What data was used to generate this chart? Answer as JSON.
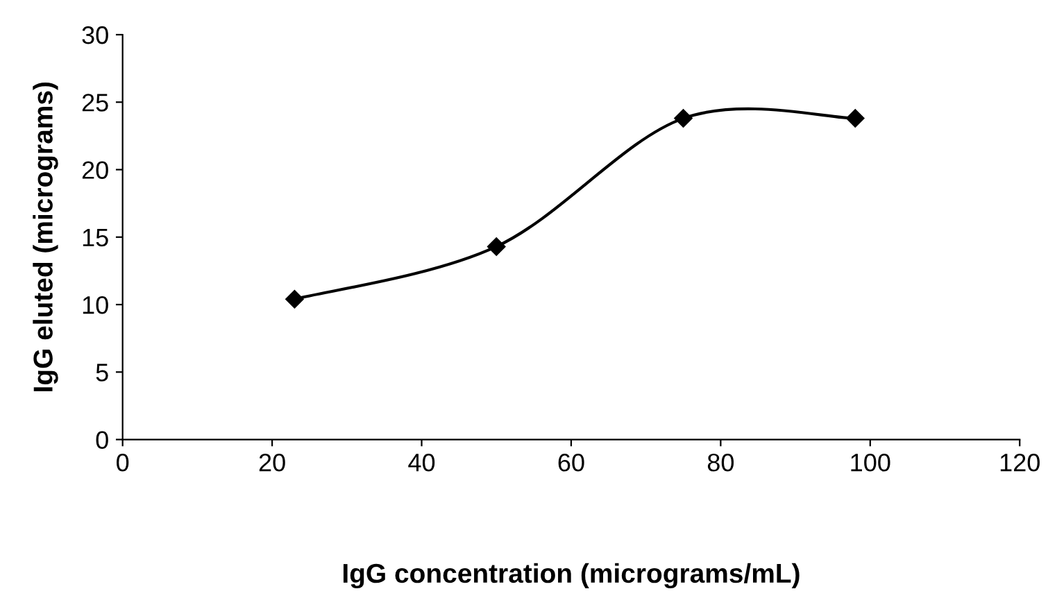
{
  "chart_data": {
    "type": "line",
    "xlabel": "IgG concentration (micrograms/mL)",
    "ylabel": "IgG eluted (micrograms)",
    "x": [
      23,
      50,
      75,
      98
    ],
    "series": [
      {
        "color": "#000000",
        "values": [
          10.4,
          14.3,
          23.8,
          23.8
        ]
      }
    ],
    "xlim": [
      0,
      120
    ],
    "xticks": [
      0,
      20,
      40,
      60,
      80,
      100,
      120
    ],
    "ylim": [
      0,
      30
    ],
    "yticks": [
      0,
      5,
      10,
      15,
      20,
      25,
      30
    ],
    "marker": "diamond",
    "line_style": "solid",
    "grid": false,
    "legend": false
  }
}
